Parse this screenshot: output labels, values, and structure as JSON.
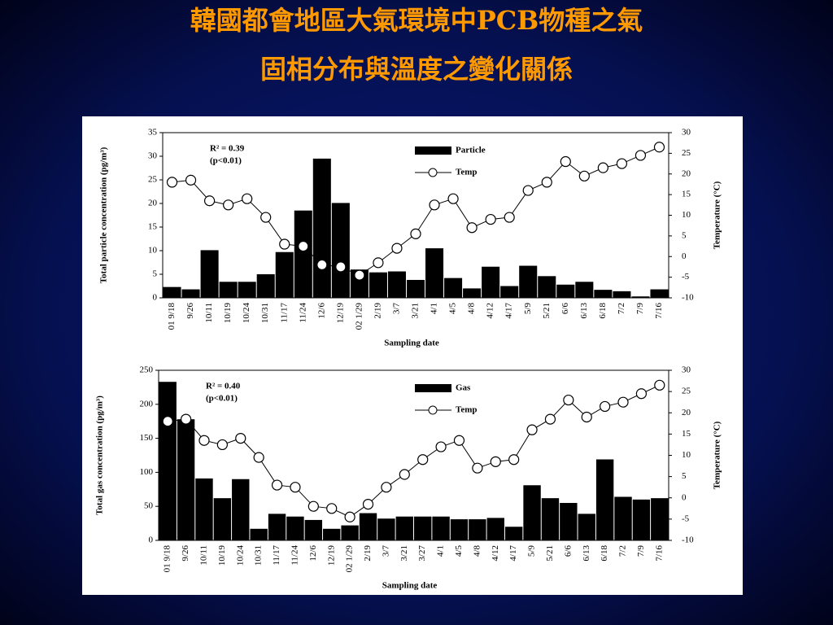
{
  "title_lines": [
    "韓國都會地區大氣環境中PCB物種之氣",
    "固相分布與溫度之變化關係"
  ],
  "chart_data": [
    {
      "type": "bar",
      "annotations": [
        "R² = 0.39",
        "(p<0.01)"
      ],
      "xlabel": "Sampling date",
      "ylabel": "Total particle concentration (pg/m³)",
      "y2label": "Temperature (°C)",
      "categories": [
        "01 9/18",
        "9/26",
        "10/11",
        "10/19",
        "10/24",
        "10/31",
        "11/17",
        "11/24",
        "12/6",
        "12/19",
        "02 1/29",
        "2/19",
        "3/7",
        "3/21",
        "4/1",
        "4/5",
        "4/8",
        "4/12",
        "4/17",
        "5/9",
        "5/21",
        "6/6",
        "6/13",
        "6/18",
        "7/2",
        "7/9",
        "7/16"
      ],
      "series": [
        {
          "name": "Particle",
          "type": "bar",
          "color": "#000000",
          "values": [
            2.3,
            1.8,
            10.1,
            3.4,
            3.4,
            5,
            9.7,
            18.5,
            29.5,
            20.1,
            6,
            5.4,
            5.6,
            3.8,
            10.5,
            4.2,
            2,
            6.6,
            2.5,
            6.8,
            4.6,
            2.8,
            3.4,
            1.7,
            1.4,
            0.3,
            1.8
          ]
        },
        {
          "name": "Temp",
          "type": "line",
          "axis": "y2",
          "color": "#000000",
          "values": [
            18,
            18.5,
            13.5,
            12.5,
            14,
            9.5,
            3,
            2.5,
            -2,
            -2.5,
            -4.5,
            -1.5,
            2,
            5.5,
            12.5,
            14,
            7,
            9,
            9.5,
            16,
            18,
            23,
            19.5,
            21.5,
            22.5,
            24.5,
            26.5
          ]
        }
      ],
      "ylim": [
        0,
        35
      ],
      "yticks": [
        0,
        5,
        10,
        15,
        20,
        25,
        30,
        35
      ],
      "y2lim": [
        -10,
        30
      ],
      "y2ticks": [
        -10,
        -5,
        0,
        5,
        10,
        15,
        20,
        25,
        30
      ]
    },
    {
      "type": "bar",
      "annotations": [
        "R² = 0.40",
        "(p<0.01)"
      ],
      "xlabel": "Sampling date",
      "ylabel": "Total gas concentration (pg/m³)",
      "y2label": "Temperature (°C)",
      "categories": [
        "01 9/18",
        "9/26",
        "10/11",
        "10/19",
        "10/24",
        "10/31",
        "11/17",
        "11/24",
        "12/6",
        "12/19",
        "02 1/29",
        "2/19",
        "3/7",
        "3/21",
        "3/27",
        "4/1",
        "4/5",
        "4/8",
        "4/12",
        "4/17",
        "5/9",
        "5/21",
        "6/6",
        "6/13",
        "6/18",
        "7/2",
        "7/9",
        "7/16"
      ],
      "series": [
        {
          "name": "Gas",
          "type": "bar",
          "color": "#000000",
          "values": [
            233,
            178,
            91,
            62,
            90,
            17,
            39,
            35,
            30,
            17,
            22,
            40,
            32,
            35,
            35,
            35,
            31,
            31,
            33,
            20,
            81,
            62,
            55,
            39,
            119,
            64,
            60,
            62
          ]
        },
        {
          "name": "Temp",
          "type": "line",
          "axis": "y2",
          "color": "#000000",
          "values": [
            18,
            18.5,
            13.5,
            12.5,
            14,
            9.5,
            3,
            2.5,
            -2,
            -2.5,
            -4.5,
            -1.5,
            2.5,
            5.5,
            9,
            12,
            13.5,
            7,
            8.5,
            9,
            16,
            18.5,
            23,
            19,
            21.5,
            22.5,
            24.5,
            26.5
          ]
        }
      ],
      "ylim": [
        0,
        250
      ],
      "yticks": [
        0,
        50,
        100,
        150,
        200,
        250
      ],
      "y2lim": [
        -10,
        30
      ],
      "y2ticks": [
        -10,
        -5,
        0,
        5,
        10,
        15,
        20,
        25,
        30
      ]
    }
  ]
}
